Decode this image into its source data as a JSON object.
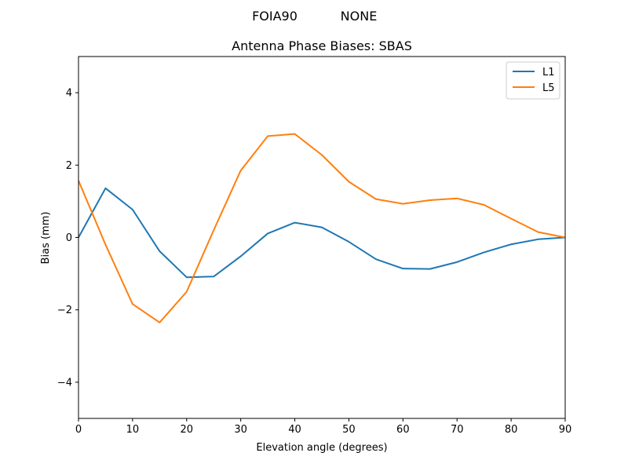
{
  "figure": {
    "suptitle_left": "FOIA90",
    "suptitle_right": "NONE"
  },
  "chart_data": {
    "type": "line",
    "title": "Antenna Phase Biases: SBAS",
    "xlabel": "Elevation angle (degrees)",
    "ylabel": "Bias (mm)",
    "xlim": [
      0,
      90
    ],
    "ylim": [
      -5,
      5
    ],
    "xticks": [
      0,
      10,
      20,
      30,
      40,
      50,
      60,
      70,
      80,
      90
    ],
    "yticks": [
      -4,
      -2,
      0,
      2,
      4
    ],
    "grid": false,
    "legend_position": "top-right",
    "x": [
      0,
      5,
      10,
      15,
      20,
      25,
      30,
      35,
      40,
      45,
      50,
      55,
      60,
      65,
      70,
      75,
      80,
      85,
      90
    ],
    "series": [
      {
        "name": "L1",
        "color": "#1f77b4",
        "values": [
          0.0,
          1.36,
          0.77,
          -0.38,
          -1.1,
          -1.08,
          -0.52,
          0.11,
          0.41,
          0.28,
          -0.12,
          -0.6,
          -0.86,
          -0.87,
          -0.68,
          -0.41,
          -0.19,
          -0.05,
          0.0
        ]
      },
      {
        "name": "L5",
        "color": "#ff7f0e",
        "values": [
          1.57,
          -0.2,
          -1.84,
          -2.35,
          -1.5,
          0.2,
          1.85,
          2.8,
          2.86,
          2.28,
          1.54,
          1.06,
          0.93,
          1.03,
          1.08,
          0.9,
          0.52,
          0.15,
          0.0
        ]
      }
    ]
  }
}
